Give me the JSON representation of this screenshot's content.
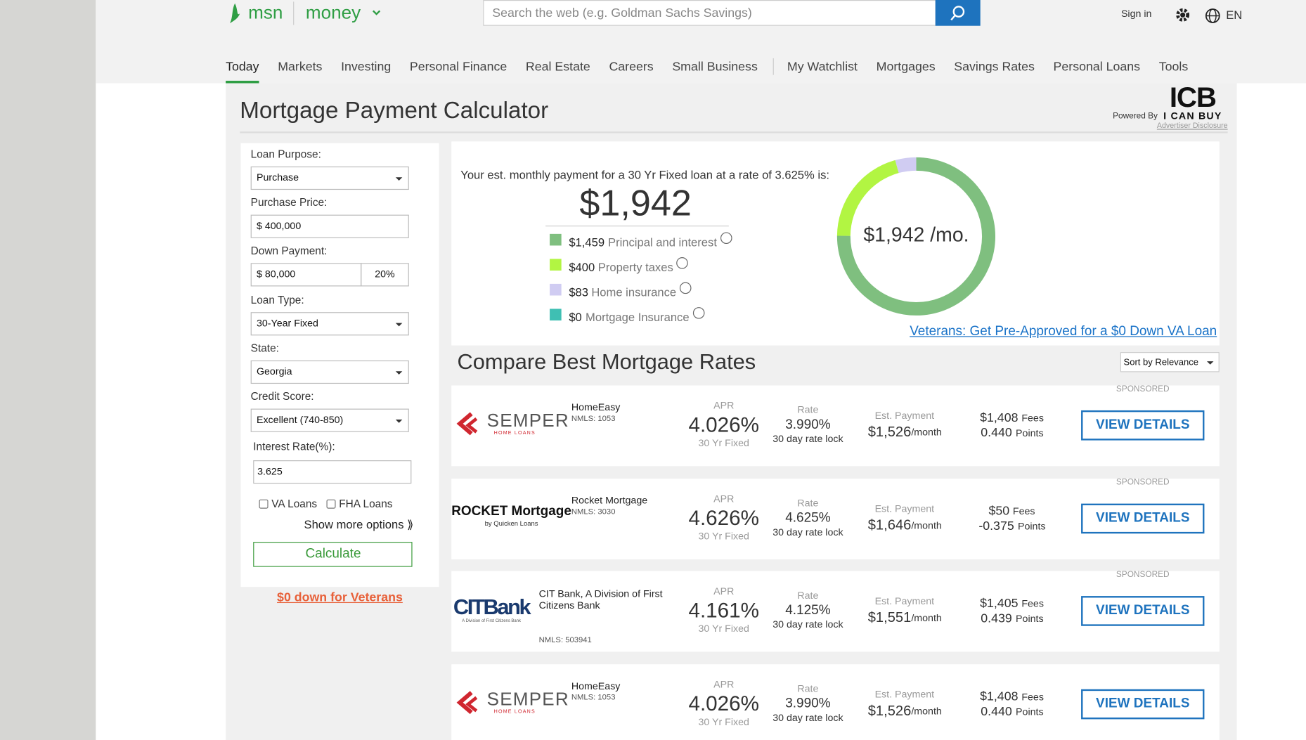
{
  "header": {
    "brand": "msn",
    "section": "money",
    "search_placeholder": "Search the web (e.g. Goldman Sachs Savings)",
    "sign_in": "Sign in",
    "language": "EN"
  },
  "nav": {
    "primary": [
      "Today",
      "Markets",
      "Investing",
      "Personal Finance",
      "Real Estate",
      "Careers",
      "Small Business"
    ],
    "secondary": [
      "My Watchlist",
      "Mortgages",
      "Savings Rates",
      "Personal Loans",
      "Tools"
    ]
  },
  "page": {
    "title": "Mortgage Payment Calculator",
    "powered_by": "Powered By",
    "logo": "ICB",
    "logo_sub": "I CAN BUY",
    "disclosure": "Advertiser Disclosure"
  },
  "form": {
    "fields": [
      {
        "label": "Loan Purpose:",
        "value": "Purchase"
      },
      {
        "label": "Purchase Price:",
        "value": "$ 400,000"
      },
      {
        "label": "Down Payment:",
        "value": "$ 80,000",
        "percent": "20%"
      },
      {
        "label": "Loan Type:",
        "value": "30-Year Fixed"
      },
      {
        "label": "State:",
        "value": "Georgia"
      },
      {
        "label": "Credit Score:",
        "value": "Excellent (740-850)"
      }
    ],
    "interest_label": "Interest Rate(%):",
    "interest_value": "3.625",
    "checkboxes": [
      "VA Loans",
      "FHA Loans"
    ],
    "more": "Show more options ⟫",
    "button": "Calculate",
    "veterans_link": "$0 down for Veterans"
  },
  "summary": {
    "intro": "Your est. monthly payment for a 30 Yr Fixed loan at a rate of 3.625% is:",
    "total": "$1,942",
    "donut_label": "$1,942 /mo.",
    "breakdown": [
      {
        "value": 1459,
        "value_label": "$1,459",
        "label": "Principal and interest",
        "color": "#7fbf7f"
      },
      {
        "value": 400,
        "value_label": "$400",
        "label": "Property taxes",
        "color": "#b2f542"
      },
      {
        "value": 83,
        "value_label": "$83",
        "label": "Home insurance",
        "color": "#d0ccf2"
      },
      {
        "value": 0,
        "value_label": "$0",
        "label": "Mortgage Insurance",
        "color": "#3fbfb3"
      }
    ],
    "va_link": "Veterans: Get Pre-Approved for a $0 Down VA Loan"
  },
  "rates": {
    "title": "Compare Best Mortgage Rates",
    "sort": "Sort by Relevance",
    "offers": [
      {
        "sponsored": "SPONSORED",
        "logo": "SEMPER",
        "logo_sub": "HOME LOANS",
        "lender": "HomeEasy",
        "nmls": "NMLS: 1053",
        "apr_label": "APR",
        "apr": "4.026%",
        "term": "30 Yr Fixed",
        "rate_label": "Rate",
        "rate": "3.990%",
        "lock": "30 day rate lock",
        "payment_label": "Est. Payment",
        "payment": "$1,526",
        "per": "/month",
        "fees": "$1,408",
        "fees_label": "Fees",
        "points": "0.440",
        "points_label": "Points",
        "button": "VIEW DETAILS"
      },
      {
        "sponsored": "SPONSORED",
        "logo": "ROCKET Mortgage",
        "logo_sub": "by Quicken Loans",
        "lender": "Rocket Mortgage",
        "nmls": "NMLS: 3030",
        "apr_label": "APR",
        "apr": "4.626%",
        "term": "30 Yr Fixed",
        "rate_label": "Rate",
        "rate": "4.625%",
        "lock": "30 day rate lock",
        "payment_label": "Est. Payment",
        "payment": "$1,646",
        "per": "/month",
        "fees": "$50",
        "fees_label": "Fees",
        "points": "-0.375",
        "points_label": "Points",
        "button": "VIEW DETAILS"
      },
      {
        "sponsored": "SPONSORED",
        "logo": "CITBank",
        "logo_sub": "A Division of First Citizens Bank",
        "lender": "CIT Bank, A Division of First Citizens Bank",
        "nmls": "NMLS: 503941",
        "apr_label": "APR",
        "apr": "4.161%",
        "term": "30 Yr Fixed",
        "rate_label": "Rate",
        "rate": "4.125%",
        "lock": "30 day rate lock",
        "payment_label": "Est. Payment",
        "payment": "$1,551",
        "per": "/month",
        "fees": "$1,405",
        "fees_label": "Fees",
        "points": "0.439",
        "points_label": "Points",
        "button": "VIEW DETAILS"
      },
      {
        "logo": "SEMPER",
        "logo_sub": "HOME LOANS",
        "lender": "HomeEasy",
        "nmls": "NMLS: 1053",
        "apr_label": "APR",
        "apr": "4.026%",
        "term": "30 Yr Fixed",
        "rate_label": "Rate",
        "rate": "3.990%",
        "lock": "30 day rate lock",
        "payment_label": "Est. Payment",
        "payment": "$1,526",
        "per": "/month",
        "fees": "$1,408",
        "fees_label": "Fees",
        "points": "0.440",
        "points_label": "Points",
        "button": "VIEW DETAILS"
      }
    ]
  }
}
